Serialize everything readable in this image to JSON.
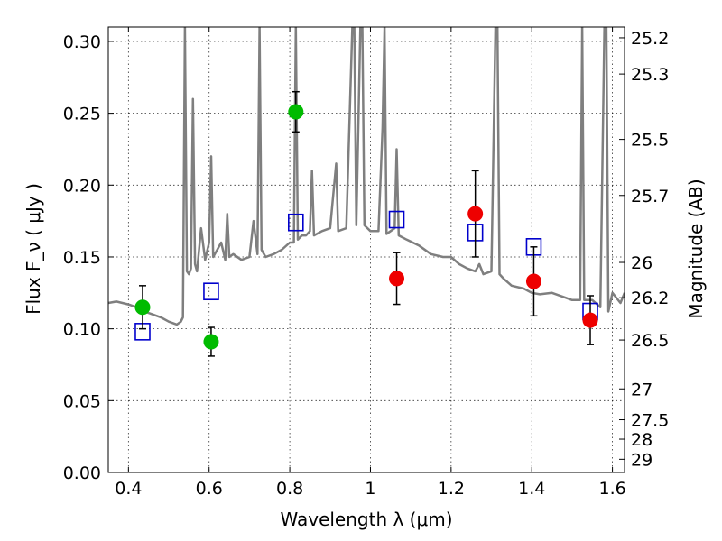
{
  "chart_data": {
    "type": "scatter",
    "xlabel": "Wavelength  λ (μm)",
    "ylabel": "Flux  F_ν  ( μJy )",
    "ylabel_right": "Magnitude (AB)",
    "xlim": [
      0.35,
      1.63
    ],
    "ylim": [
      0.0,
      0.31
    ],
    "grid": true,
    "x_ticks": [
      0.4,
      0.6,
      0.8,
      1.0,
      1.2,
      1.4,
      1.6
    ],
    "x_tick_labels": [
      "0.4",
      "0.6",
      "0.8",
      "1",
      "1.2",
      "1.4",
      "1.6"
    ],
    "y_ticks": [
      0.0,
      0.05,
      0.1,
      0.15,
      0.2,
      0.25,
      0.3
    ],
    "y_tick_labels": [
      "0.00",
      "0.05",
      "0.10",
      "0.15",
      "0.20",
      "0.25",
      "0.30"
    ],
    "right_ticks": [
      {
        "label": "25.2",
        "flux": 0.3025
      },
      {
        "label": "25.3",
        "flux": 0.2773
      },
      {
        "label": "25.5",
        "flux": 0.2318
      },
      {
        "label": "25.7",
        "flux": 0.1928
      },
      {
        "label": "26",
        "flux": 0.1462
      },
      {
        "label": "26.2",
        "flux": 0.1216
      },
      {
        "label": "26.5",
        "flux": 0.0922
      },
      {
        "label": "27",
        "flux": 0.0582
      },
      {
        "label": "27.5",
        "flux": 0.0367
      },
      {
        "label": "28",
        "flux": 0.0232
      },
      {
        "label": "29",
        "flux": 0.0092
      }
    ],
    "series": [
      {
        "color": "#7f7f7f",
        "style": "line",
        "x": [
          0.35,
          0.37,
          0.4,
          0.42,
          0.44,
          0.46,
          0.48,
          0.5,
          0.52,
          0.53,
          0.535,
          0.54,
          0.545,
          0.55,
          0.555,
          0.56,
          0.565,
          0.57,
          0.58,
          0.59,
          0.6,
          0.605,
          0.61,
          0.62,
          0.63,
          0.64,
          0.645,
          0.65,
          0.66,
          0.68,
          0.7,
          0.71,
          0.72,
          0.725,
          0.73,
          0.74,
          0.76,
          0.78,
          0.8,
          0.81,
          0.815,
          0.82,
          0.83,
          0.84,
          0.85,
          0.855,
          0.86,
          0.88,
          0.9,
          0.915,
          0.92,
          0.94,
          0.955,
          0.96,
          0.965,
          0.975,
          0.98,
          0.985,
          1.0,
          1.02,
          1.03,
          1.035,
          1.04,
          1.05,
          1.06,
          1.065,
          1.07,
          1.09,
          1.12,
          1.15,
          1.18,
          1.2,
          1.22,
          1.24,
          1.26,
          1.27,
          1.28,
          1.3,
          1.31,
          1.315,
          1.32,
          1.33,
          1.35,
          1.38,
          1.4,
          1.42,
          1.45,
          1.48,
          1.5,
          1.52,
          1.525,
          1.53,
          1.55,
          1.57,
          1.58,
          1.585,
          1.59,
          1.6,
          1.62,
          1.63
        ],
        "y": [
          0.118,
          0.119,
          0.117,
          0.115,
          0.112,
          0.11,
          0.108,
          0.105,
          0.103,
          0.105,
          0.108,
          0.31,
          0.14,
          0.138,
          0.142,
          0.26,
          0.145,
          0.14,
          0.17,
          0.148,
          0.16,
          0.22,
          0.15,
          0.155,
          0.16,
          0.148,
          0.18,
          0.15,
          0.152,
          0.148,
          0.15,
          0.175,
          0.152,
          0.31,
          0.155,
          0.15,
          0.152,
          0.155,
          0.16,
          0.16,
          0.31,
          0.162,
          0.165,
          0.165,
          0.168,
          0.21,
          0.165,
          0.168,
          0.17,
          0.215,
          0.168,
          0.17,
          0.31,
          0.31,
          0.172,
          0.31,
          0.31,
          0.172,
          0.168,
          0.168,
          0.24,
          0.31,
          0.166,
          0.168,
          0.17,
          0.225,
          0.165,
          0.162,
          0.158,
          0.152,
          0.15,
          0.15,
          0.145,
          0.142,
          0.14,
          0.145,
          0.138,
          0.14,
          0.31,
          0.31,
          0.138,
          0.135,
          0.13,
          0.128,
          0.125,
          0.124,
          0.125,
          0.122,
          0.12,
          0.12,
          0.31,
          0.12,
          0.12,
          0.115,
          0.31,
          0.31,
          0.112,
          0.125,
          0.118,
          0.125
        ]
      },
      {
        "color": "#0000cc",
        "style": "open-square",
        "x": [
          0.435,
          0.605,
          0.815,
          1.065,
          1.26,
          1.405,
          1.545
        ],
        "y": [
          0.098,
          0.126,
          0.174,
          0.176,
          0.167,
          0.157,
          0.112
        ]
      },
      {
        "color": "#00bb00",
        "style": "filled-circle",
        "x": [
          0.435,
          0.605,
          0.815
        ],
        "y": [
          0.115,
          0.091,
          0.251
        ],
        "err": [
          0.015,
          0.01,
          0.014
        ]
      },
      {
        "color": "#ee0000",
        "style": "filled-circle",
        "x": [
          1.065,
          1.26,
          1.405,
          1.545
        ],
        "y": [
          0.135,
          0.18,
          0.133,
          0.106
        ],
        "err": [
          0.018,
          0.03,
          0.024,
          0.017
        ]
      }
    ]
  }
}
